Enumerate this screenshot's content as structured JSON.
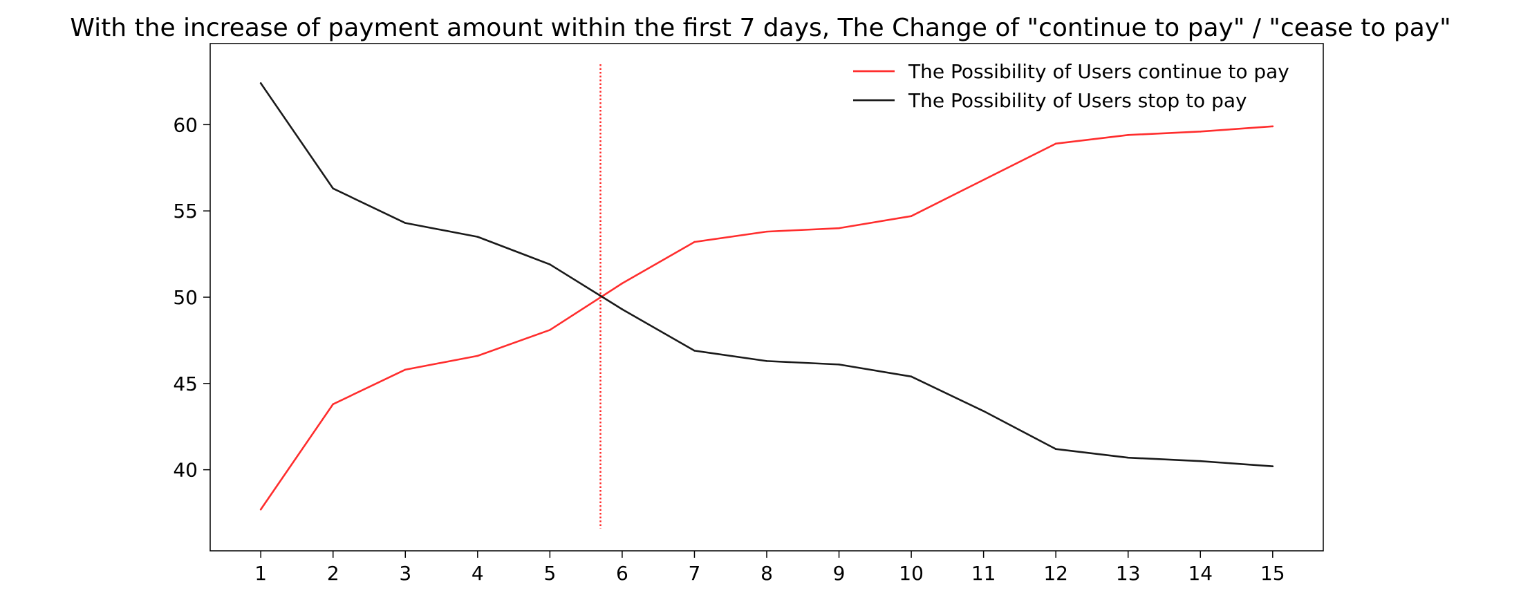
{
  "chart_data": {
    "type": "line",
    "title": "With the increase of payment amount within the first 7 days, The Change of \"continue to pay\" / \"cease to pay\"",
    "xlabel": "",
    "ylabel": "",
    "x": [
      1,
      2,
      3,
      4,
      5,
      6,
      7,
      8,
      9,
      10,
      11,
      12,
      13,
      14,
      15
    ],
    "xlim": [
      0.3,
      15.7
    ],
    "ylim": [
      35.3,
      64.7
    ],
    "xticks": [
      "1",
      "2",
      "3",
      "4",
      "5",
      "6",
      "7",
      "8",
      "9",
      "10",
      "11",
      "12",
      "13",
      "14",
      "15"
    ],
    "yticks": [
      40,
      45,
      50,
      55,
      60
    ],
    "grid": false,
    "legend_position": "top-right",
    "series": [
      {
        "name": "The Possibility of Users continue to pay",
        "color": "#ff2d2d",
        "values": [
          37.7,
          43.8,
          45.8,
          46.6,
          48.1,
          50.8,
          53.2,
          53.8,
          54.0,
          54.7,
          56.8,
          58.9,
          59.4,
          59.6,
          59.9
        ]
      },
      {
        "name": "The Possibility of Users stop to pay",
        "color": "#1a1a1a",
        "values": [
          62.4,
          56.3,
          54.3,
          53.5,
          51.9,
          49.3,
          46.9,
          46.3,
          46.1,
          45.4,
          43.4,
          41.2,
          40.7,
          40.5,
          40.2
        ]
      }
    ],
    "reference_line": {
      "orientation": "vertical",
      "x": 5.7,
      "y_range": [
        36.6,
        63.5
      ],
      "style": "dotted",
      "color": "#ff2d2d"
    }
  }
}
